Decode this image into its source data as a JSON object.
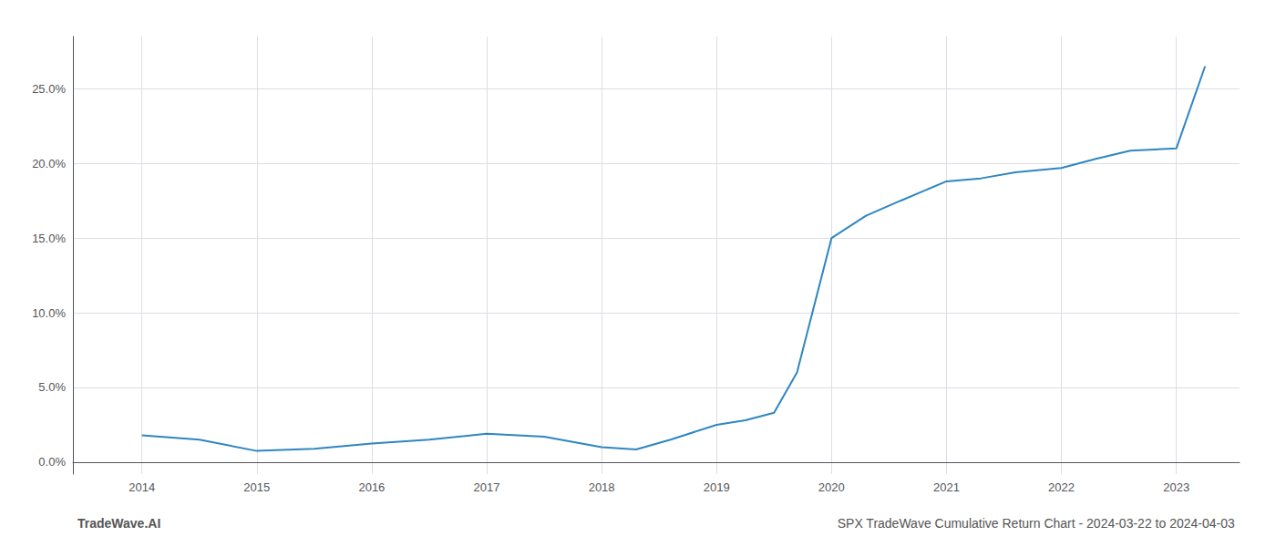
{
  "chart_data": {
    "type": "line",
    "title": "SPX TradeWave Cumulative Return Chart - 2024-03-22 to 2024-04-03",
    "annotations": [
      "TradeWave.AI"
    ],
    "x": [
      2014.0,
      2014.5,
      2015.0,
      2015.5,
      2016.0,
      2016.5,
      2017.0,
      2017.5,
      2018.0,
      2018.3,
      2018.6,
      2019.0,
      2019.25,
      2019.5,
      2019.7,
      2020.0,
      2020.3,
      2020.6,
      2021.0,
      2021.3,
      2021.6,
      2022.0,
      2022.3,
      2022.6,
      2023.0,
      2023.25
    ],
    "values": [
      1.8,
      1.5,
      0.75,
      0.9,
      1.25,
      1.5,
      1.9,
      1.7,
      1.0,
      0.85,
      1.5,
      2.5,
      2.8,
      3.3,
      6.0,
      15.0,
      16.5,
      17.5,
      18.8,
      19.0,
      19.4,
      19.7,
      20.3,
      20.85,
      21.0,
      26.5
    ],
    "color": "#2e86c1",
    "xlim": [
      2013.4,
      2023.55
    ],
    "ylim": [
      -0.8,
      28.5
    ],
    "xticks": [
      2014,
      2015,
      2016,
      2017,
      2018,
      2019,
      2020,
      2021,
      2022,
      2023
    ],
    "yticks": [
      {
        "value": 0.0,
        "label": "0.0%"
      },
      {
        "value": 5.0,
        "label": "5.0%"
      },
      {
        "value": 10.0,
        "label": "10.0%"
      },
      {
        "value": 15.0,
        "label": "15.0%"
      },
      {
        "value": 20.0,
        "label": "20.0%"
      },
      {
        "value": 25.0,
        "label": "25.0%"
      }
    ],
    "grid": true
  }
}
